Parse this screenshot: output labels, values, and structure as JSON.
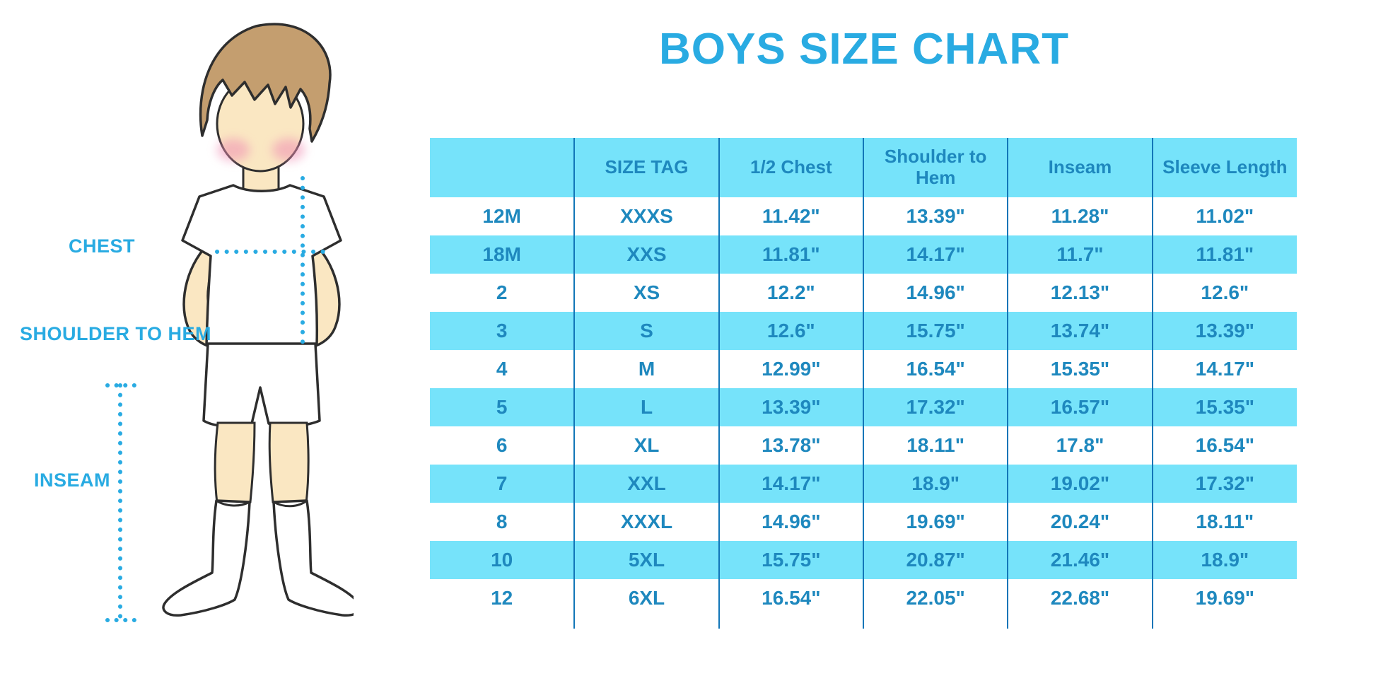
{
  "title": "BOYS SIZE CHART",
  "figure": {
    "chest_label": "CHEST",
    "shoulder_label": "SHOULDER TO HEM",
    "inseam_label": "INSEAM"
  },
  "colors": {
    "accent_blue": "#29ABE2",
    "table_text_blue": "#1E88BE",
    "cell_fill_cyan": "#76E3FA",
    "divider_blue": "#1276B8",
    "skin": "#FAE7C2",
    "hair": "#C49E6F",
    "outline": "#2E2E2E"
  },
  "chart_data": {
    "type": "table",
    "title": "BOYS SIZE CHART",
    "columns": [
      "",
      "SIZE TAG",
      "1/2 Chest",
      "Shoulder to Hem",
      "Inseam",
      "Sleeve Length"
    ],
    "rows": [
      [
        "12M",
        "XXXS",
        "11.42\"",
        "13.39\"",
        "11.28\"",
        "11.02\""
      ],
      [
        "18M",
        "XXS",
        "11.81\"",
        "14.17\"",
        "11.7\"",
        "11.81\""
      ],
      [
        "2",
        "XS",
        "12.2\"",
        "14.96\"",
        "12.13\"",
        "12.6\""
      ],
      [
        "3",
        "S",
        "12.6\"",
        "15.75\"",
        "13.74\"",
        "13.39\""
      ],
      [
        "4",
        "M",
        "12.99\"",
        "16.54\"",
        "15.35\"",
        "14.17\""
      ],
      [
        "5",
        "L",
        "13.39\"",
        "17.32\"",
        "16.57\"",
        "15.35\""
      ],
      [
        "6",
        "XL",
        "13.78\"",
        "18.11\"",
        "17.8\"",
        "16.54\""
      ],
      [
        "7",
        "XXL",
        "14.17\"",
        "18.9\"",
        "19.02\"",
        "17.32\""
      ],
      [
        "8",
        "XXXL",
        "14.96\"",
        "19.69\"",
        "20.24\"",
        "18.11\""
      ],
      [
        "10",
        "5XL",
        "15.75\"",
        "20.87\"",
        "21.46\"",
        "18.9\""
      ],
      [
        "12",
        "6XL",
        "16.54\"",
        "22.05\"",
        "22.68\"",
        "19.69\""
      ]
    ]
  }
}
